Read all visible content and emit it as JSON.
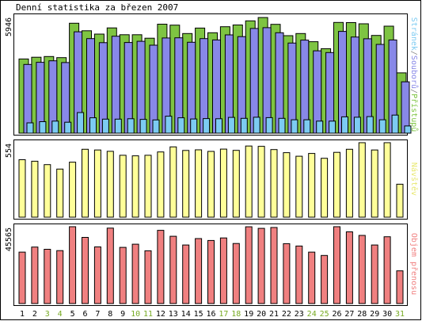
{
  "window": {
    "title": "Denní statistika za březen 2007"
  },
  "chart_data": {
    "type": "bar",
    "title": "Denní statistika za březen 2007",
    "categories": [
      "1",
      "2",
      "3",
      "4",
      "5",
      "6",
      "7",
      "8",
      "9",
      "10",
      "11",
      "12",
      "13",
      "14",
      "15",
      "16",
      "17",
      "18",
      "19",
      "20",
      "21",
      "22",
      "23",
      "24",
      "25",
      "26",
      "27",
      "28",
      "29",
      "30",
      "31"
    ],
    "weekend_days": [
      "3",
      "4",
      "10",
      "11",
      "17",
      "18",
      "24",
      "25",
      "31"
    ],
    "colors": {
      "pristupu": "#7ec442",
      "souboru": "#8888e8",
      "stranek": "#7ccbf2",
      "navstevy": "#ffff99",
      "objem": "#f08080",
      "weekday_label": "#000000",
      "weekend_label": "#77aa22",
      "panel_border": "#000000",
      "bar_border": "#000000"
    },
    "panels": [
      {
        "ymax_label": "5946",
        "ymax": 5946,
        "legend": [
          {
            "text": "Stránek",
            "color": "#7ccbf2"
          },
          {
            "text": "/",
            "color": "#888888"
          },
          {
            "text": "Souborů",
            "color": "#8888e8"
          },
          {
            "text": "/",
            "color": "#888888"
          },
          {
            "text": "Přístupů",
            "color": "#7ec442"
          }
        ],
        "series": [
          {
            "name": "Přístupů",
            "color": "#7ec442",
            "values": [
              3810,
              3900,
              3940,
              3880,
              5650,
              5260,
              5090,
              5410,
              5060,
              5060,
              4880,
              5600,
              5550,
              5120,
              5400,
              5160,
              5470,
              5560,
              5770,
              5940,
              5590,
              5010,
              5120,
              4700,
              4340,
              5690,
              5680,
              5620,
              5020,
              5500,
              3100
            ]
          },
          {
            "name": "Souborů",
            "color": "#8888e8",
            "values": [
              3530,
              3640,
              3720,
              3630,
              5210,
              4860,
              4650,
              4980,
              4660,
              4720,
              4520,
              4890,
              4900,
              4670,
              4860,
              4790,
              5050,
              4960,
              5380,
              5420,
              5160,
              4630,
              4780,
              4230,
              4140,
              5230,
              4940,
              4850,
              4560,
              4790,
              2640
            ]
          },
          {
            "name": "Stránek",
            "color": "#7ccbf2",
            "values": [
              530,
              590,
              620,
              560,
              1060,
              790,
              720,
              720,
              740,
              710,
              680,
              870,
              790,
              730,
              750,
              740,
              810,
              760,
              820,
              800,
              760,
              690,
              690,
              620,
              620,
              840,
              820,
              850,
              690,
              930,
              370
            ]
          }
        ]
      },
      {
        "ymax_label": "554",
        "ymax": 554,
        "legend": [
          {
            "text": "Návštěv",
            "color": "#e8e870"
          }
        ],
        "series": [
          {
            "name": "Návštěv",
            "color": "#ffff99",
            "values": [
              427,
              416,
              391,
              358,
              409,
              505,
              500,
              490,
              460,
              456,
              460,
              485,
              523,
              496,
              501,
              489,
              506,
              497,
              529,
              527,
              503,
              480,
              453,
              474,
              438,
              482,
              505,
              554,
              500,
              554,
              245
            ]
          }
        ]
      },
      {
        "ymax_label": "45565",
        "ymax": 45565,
        "legend": [
          {
            "text": "Objem přenosu",
            "color": "#f08080"
          }
        ],
        "series": [
          {
            "name": "Objem přenosu",
            "color": "#f08080",
            "values": [
              30500,
              33500,
              32200,
              31400,
              45565,
              39200,
              33600,
              44700,
              33300,
              35200,
              31300,
              43400,
              39900,
              34700,
              38500,
              37400,
              38900,
              35600,
              45500,
              44600,
              45100,
              35500,
              34100,
              30500,
              28500,
              45565,
              42500,
              40400,
              34700,
              39600,
              19400
            ]
          }
        ]
      }
    ]
  }
}
